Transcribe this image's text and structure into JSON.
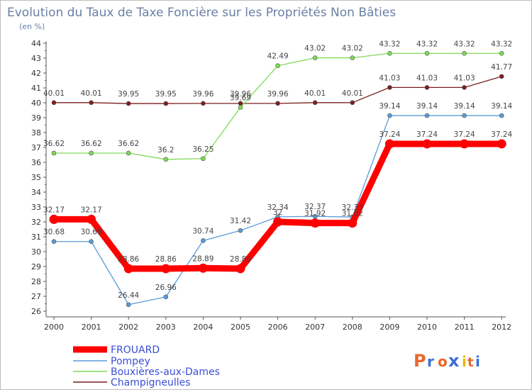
{
  "chart_data": {
    "type": "line",
    "title": "Evolution du Taux de Taxe Foncière sur les Propriétés Non Bâties",
    "subtitle": "(en %)",
    "xlabel": "",
    "ylabel": "",
    "ylim": [
      26,
      44
    ],
    "grid": false,
    "categories": [
      "2000",
      "2001",
      "2002",
      "2003",
      "2004",
      "2005",
      "2006",
      "2007",
      "2008",
      "2009",
      "2010",
      "2011",
      "2012"
    ],
    "yticks": [
      "26",
      "27",
      "28",
      "29",
      "30",
      "31",
      "32",
      "33",
      "34",
      "35",
      "36",
      "37",
      "38",
      "39",
      "40",
      "41",
      "42",
      "43",
      "44"
    ],
    "series": [
      {
        "name": "FROUARD",
        "color": "#ff0000",
        "values": [
          32.17,
          32.17,
          28.86,
          28.86,
          28.89,
          28.86,
          32,
          31.92,
          31.92,
          37.24,
          37.24,
          37.24,
          37.24
        ],
        "labels": [
          "32.17",
          "32.17",
          "28.86",
          "28.86",
          "28.89",
          "28.86",
          "32",
          "31.92",
          "31.92",
          "37.24",
          "37.24",
          "37.24",
          "37.24"
        ]
      },
      {
        "name": "Pompey",
        "color": "#5b9bd5",
        "values": [
          30.68,
          30.68,
          26.44,
          26.96,
          30.74,
          31.42,
          32.34,
          32.37,
          32.33,
          39.14,
          39.14,
          39.14,
          39.14
        ],
        "labels": [
          "30.68",
          "30.68",
          "26.44",
          "26.96",
          "30.74",
          "31.42",
          "32.34",
          "32.37",
          "32.33",
          "39.14",
          "39.14",
          "39.14",
          "39.14"
        ]
      },
      {
        "name": "Bouxières-aux-Dames",
        "color": "#7ed957",
        "values": [
          36.62,
          36.62,
          36.62,
          36.2,
          36.25,
          39.69,
          42.49,
          43.02,
          43.02,
          43.32,
          43.32,
          43.32,
          43.32
        ],
        "labels": [
          "36.62",
          "36.62",
          "36.62",
          "36.2",
          "36.25",
          "39.69",
          "42.49",
          "43.02",
          "43.02",
          "43.32",
          "43.32",
          "43.32",
          "43.32"
        ]
      },
      {
        "name": "Champigneulles",
        "color": "#7a1f1f",
        "values": [
          40.01,
          40.01,
          39.95,
          39.95,
          39.96,
          39.96,
          39.96,
          40.01,
          40.01,
          41.03,
          41.03,
          41.03,
          41.77
        ],
        "labels": [
          "40.01",
          "40.01",
          "39.95",
          "39.95",
          "39.96",
          "39.96",
          "39.96",
          "40.01",
          "40.01",
          "41.03",
          "41.03",
          "41.03",
          "41.77"
        ]
      }
    ],
    "legend": [
      "FROUARD",
      "Pompey",
      "Bouxières-aux-Dames",
      "Champigneulles"
    ]
  },
  "logo": {
    "text": "Proxiti",
    "colors": [
      "#e8682b",
      "#3b6fd6",
      "#e8682b",
      "#3b6fd6",
      "#f2b600",
      "#e8682b",
      "#3b6fd6"
    ]
  }
}
